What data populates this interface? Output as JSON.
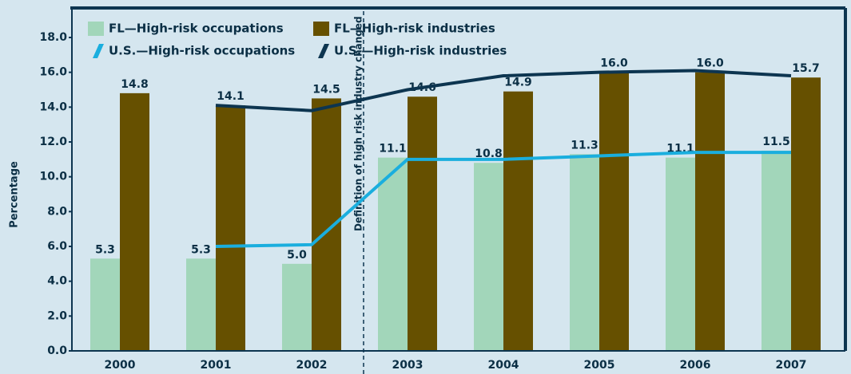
{
  "chart_data": {
    "type": "bar",
    "categories": [
      "2000",
      "2001",
      "2002",
      "2003",
      "2004",
      "2005",
      "2006",
      "2007"
    ],
    "y_label": "Percentage",
    "annotation": "Definition of high risk industry changed",
    "ylim": [
      0,
      18
    ],
    "yticks": [
      {
        "value": 0,
        "label": "0.0"
      },
      {
        "value": 2,
        "label": "2.0"
      },
      {
        "value": 4,
        "label": "4.0"
      },
      {
        "value": 6,
        "label": "6.0"
      },
      {
        "value": 8,
        "label": "8.0"
      },
      {
        "value": 10,
        "label": "10.0"
      },
      {
        "value": 12,
        "label": "12.0"
      },
      {
        "value": 14,
        "label": "14.0"
      },
      {
        "value": 16,
        "label": "16.0"
      },
      {
        "value": 18,
        "label": "18.0"
      }
    ],
    "series": [
      {
        "name": "FL—High-risk occupations",
        "type": "bar",
        "color": "#a2d6ba",
        "values": [
          5.3,
          5.3,
          5.0,
          11.1,
          10.8,
          11.3,
          11.1,
          11.5
        ],
        "value_labels": [
          "5.3",
          "5.3",
          "5.0",
          "11.1",
          "10.8",
          "11.3",
          "11.1",
          "11.5"
        ]
      },
      {
        "name": "FL—High-risk industries",
        "type": "bar",
        "color": "#665000",
        "values": [
          14.8,
          14.1,
          14.5,
          14.6,
          14.9,
          16.0,
          16.0,
          15.7
        ],
        "value_labels": [
          "14.8",
          "14.1",
          "14.5",
          "14.6",
          "14.9",
          "16.0",
          "16.0",
          "15.7"
        ]
      },
      {
        "name": "U.S.—High-risk occupations",
        "type": "line",
        "color": "#1aaede",
        "values": [
          null,
          6.0,
          6.1,
          11.0,
          11.0,
          11.2,
          11.4,
          11.4
        ]
      },
      {
        "name": "U.S.—High-risk industries",
        "type": "line",
        "color": "#0d3550",
        "values": [
          null,
          14.1,
          13.8,
          15.0,
          15.8,
          16.0,
          16.1,
          15.8
        ]
      }
    ]
  }
}
